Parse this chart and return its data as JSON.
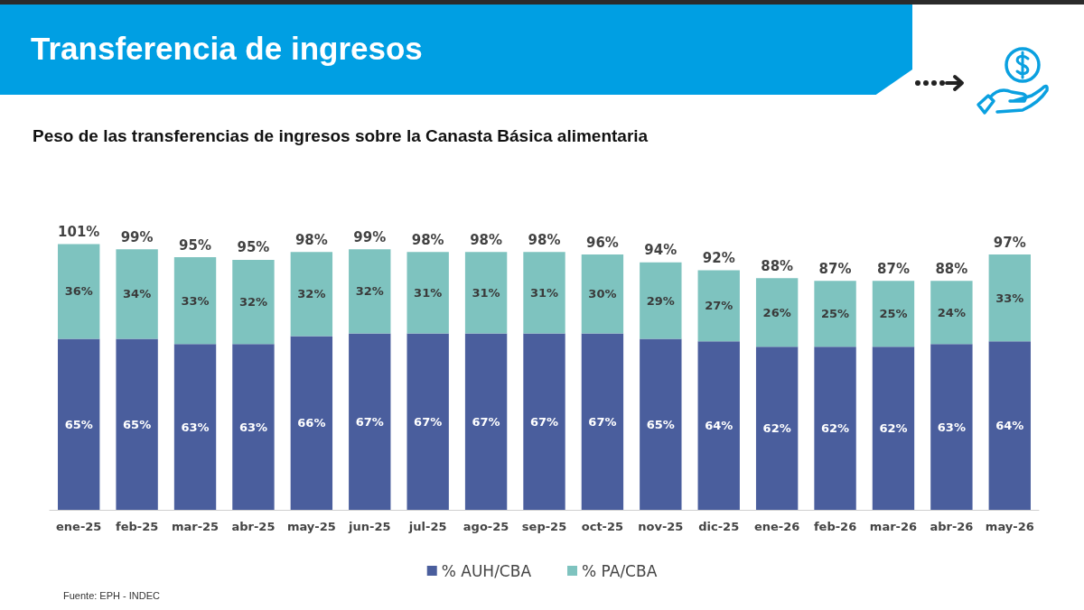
{
  "chart_data": {
    "type": "bar",
    "title": "Transferencia de ingresos",
    "subtitle": "Peso de las transferencias de ingresos sobre la Canasta Básica alimentaria",
    "annotations": [
      "Fuente: EPH - INDEC"
    ],
    "categories": [
      "ene-25",
      "feb-25",
      "mar-25",
      "abr-25",
      "may-25",
      "jun-25",
      "jul-25",
      "ago-25",
      "sep-25",
      "oct-25",
      "nov-25",
      "dic-25",
      "ene-26",
      "feb-26",
      "mar-26",
      "abr-26",
      "may-26"
    ],
    "stacked": true,
    "legend": "bottom",
    "grid": false,
    "series": [
      {
        "name": "% AUH/CBA",
        "color": "#4a5e9d",
        "values": [
          65,
          65,
          63,
          63,
          66,
          67,
          67,
          67,
          67,
          67,
          65,
          64,
          62,
          62,
          62,
          63,
          64
        ],
        "value_labels": [
          "65%",
          "65%",
          "63%",
          "63%",
          "66%",
          "67%",
          "67%",
          "67%",
          "67%",
          "67%",
          "65%",
          "64%",
          "62%",
          "62%",
          "62%",
          "63%",
          "64%"
        ]
      },
      {
        "name": "% PA/CBA",
        "color": "#7ec3bf",
        "values": [
          36,
          34,
          33,
          32,
          32,
          32,
          31,
          31,
          31,
          30,
          29,
          27,
          26,
          25,
          25,
          24,
          33
        ],
        "value_labels": [
          "36%",
          "34%",
          "33%",
          "32%",
          "32%",
          "32%",
          "31%",
          "31%",
          "31%",
          "30%",
          "29%",
          "27%",
          "26%",
          "25%",
          "25%",
          "24%",
          "33%"
        ]
      }
    ],
    "totals": [
      "101%",
      "99%",
      "95%",
      "95%",
      "98%",
      "99%",
      "98%",
      "98%",
      "98%",
      "96%",
      "94%",
      "92%",
      "88%",
      "87%",
      "87%",
      "88%",
      "97%"
    ]
  }
}
